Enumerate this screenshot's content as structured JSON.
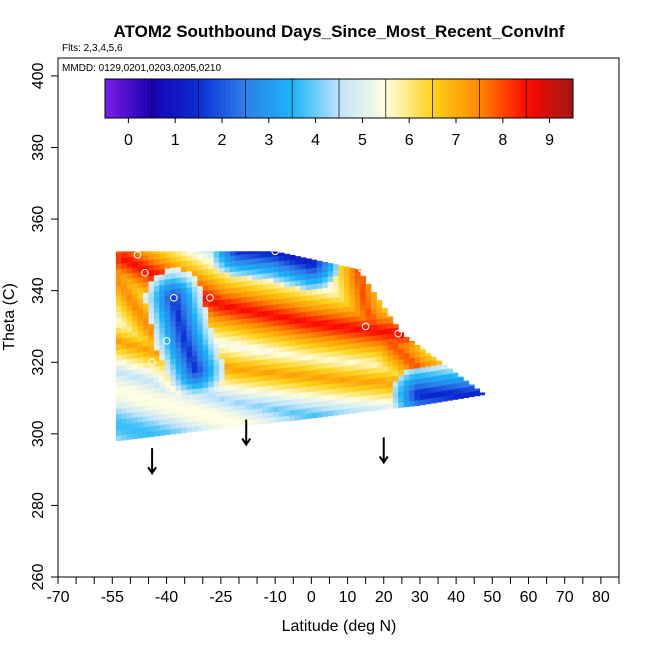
{
  "chart_data": {
    "type": "heatmap",
    "title": "ATOM2 Southbound Days_Since_Most_Recent_ConvInf",
    "subtitle": "Flts: 2,3,4,5,6",
    "annotation": "MMDD: 0129,0201,0203,0205,0210",
    "xlabel": "Latitude (deg N)",
    "ylabel": "Theta (C)",
    "xlim": [
      -70,
      85
    ],
    "ylim": [
      260,
      405
    ],
    "x_ticks": [
      -70,
      -55,
      -40,
      -25,
      -10,
      0,
      10,
      20,
      30,
      40,
      50,
      60,
      70,
      80
    ],
    "x_tick_labels": [
      "-70",
      "-55",
      "-40",
      "-25",
      "-10",
      "0",
      "10",
      "20",
      "30",
      "40",
      "50",
      "60",
      "70",
      "80"
    ],
    "x_minor_step": 5,
    "y_ticks": [
      260,
      280,
      300,
      320,
      340,
      360,
      380,
      400
    ],
    "y_tick_labels": [
      "260",
      "280",
      "300",
      "320",
      "340",
      "360",
      "380",
      "400"
    ],
    "colorbar": {
      "min": -0.5,
      "max": 9.5,
      "ticks": [
        0,
        1,
        2,
        3,
        4,
        5,
        6,
        7,
        8,
        9
      ],
      "tick_labels": [
        "0",
        "1",
        "2",
        "3",
        "4",
        "5",
        "6",
        "7",
        "8",
        "9"
      ],
      "colors": [
        "#7a1ee8",
        "#1a00b0",
        "#0a2fd4",
        "#2f7fea",
        "#18b4f8",
        "#bfe4fc",
        "#fffee0",
        "#ffd21a",
        "#ff8800",
        "#ff0a00",
        "#a01818"
      ]
    },
    "region": {
      "lat_range": [
        -54,
        48
      ],
      "theta_top": [
        [
          -54,
          351
        ],
        [
          -10,
          351
        ],
        [
          13,
          346
        ],
        [
          25,
          328
        ],
        [
          48,
          311
        ]
      ],
      "theta_bottom": [
        [
          -54,
          298
        ],
        [
          -38,
          300
        ],
        [
          -3,
          304
        ],
        [
          13,
          306
        ],
        [
          30,
          308
        ],
        [
          48,
          311
        ]
      ]
    },
    "ridges": [
      {
        "name": "upper-diagonal",
        "points": [
          [
            -52,
            349
          ],
          [
            -40,
            343
          ],
          [
            -25,
            336
          ],
          [
            0,
            331
          ],
          [
            25,
            328
          ]
        ],
        "peak": 8.6
      },
      {
        "name": "lower-diagonal",
        "points": [
          [
            -54,
            326
          ],
          [
            -40,
            322
          ],
          [
            -20,
            318
          ],
          [
            10,
            315
          ],
          [
            45,
            313
          ]
        ],
        "peak": 7.2
      },
      {
        "name": "right-branch",
        "points": [
          [
            13,
            346
          ],
          [
            15,
            335
          ],
          [
            20,
            327
          ],
          [
            30,
            318
          ],
          [
            45,
            313
          ]
        ],
        "peak": 8.0
      },
      {
        "name": "left-branch",
        "points": [
          [
            -54,
            344
          ],
          [
            -45,
            330
          ],
          [
            -35,
            318
          ]
        ],
        "peak": 7.5
      }
    ],
    "troughs": [
      {
        "name": "top-right-cold",
        "points": [
          [
            -20,
            352
          ],
          [
            -10,
            351
          ],
          [
            0,
            348
          ]
        ],
        "depth": 1.0
      },
      {
        "name": "left-cold",
        "points": [
          [
            -38,
            338
          ],
          [
            -35,
            326
          ],
          [
            -32,
            318
          ]
        ],
        "depth": 1.5
      },
      {
        "name": "bottom-right-cold",
        "points": [
          [
            30,
            311
          ],
          [
            48,
            311
          ]
        ],
        "depth": 1.2
      }
    ],
    "markers": [
      {
        "lat": -48,
        "theta": 350
      },
      {
        "lat": -46,
        "theta": 345
      },
      {
        "lat": -38,
        "theta": 338
      },
      {
        "lat": -28,
        "theta": 338
      },
      {
        "lat": -40,
        "theta": 326
      },
      {
        "lat": -44,
        "theta": 320
      },
      {
        "lat": -10,
        "theta": 351
      },
      {
        "lat": 14,
        "theta": 346
      },
      {
        "lat": 15,
        "theta": 330
      },
      {
        "lat": 24,
        "theta": 328
      },
      {
        "lat": 49,
        "theta": 311
      }
    ],
    "arrows": [
      {
        "lat": -44,
        "theta_from": 296,
        "theta_to": 289
      },
      {
        "lat": -18,
        "theta_from": 304,
        "theta_to": 297
      },
      {
        "lat": 20,
        "theta_from": 299,
        "theta_to": 292
      }
    ]
  }
}
